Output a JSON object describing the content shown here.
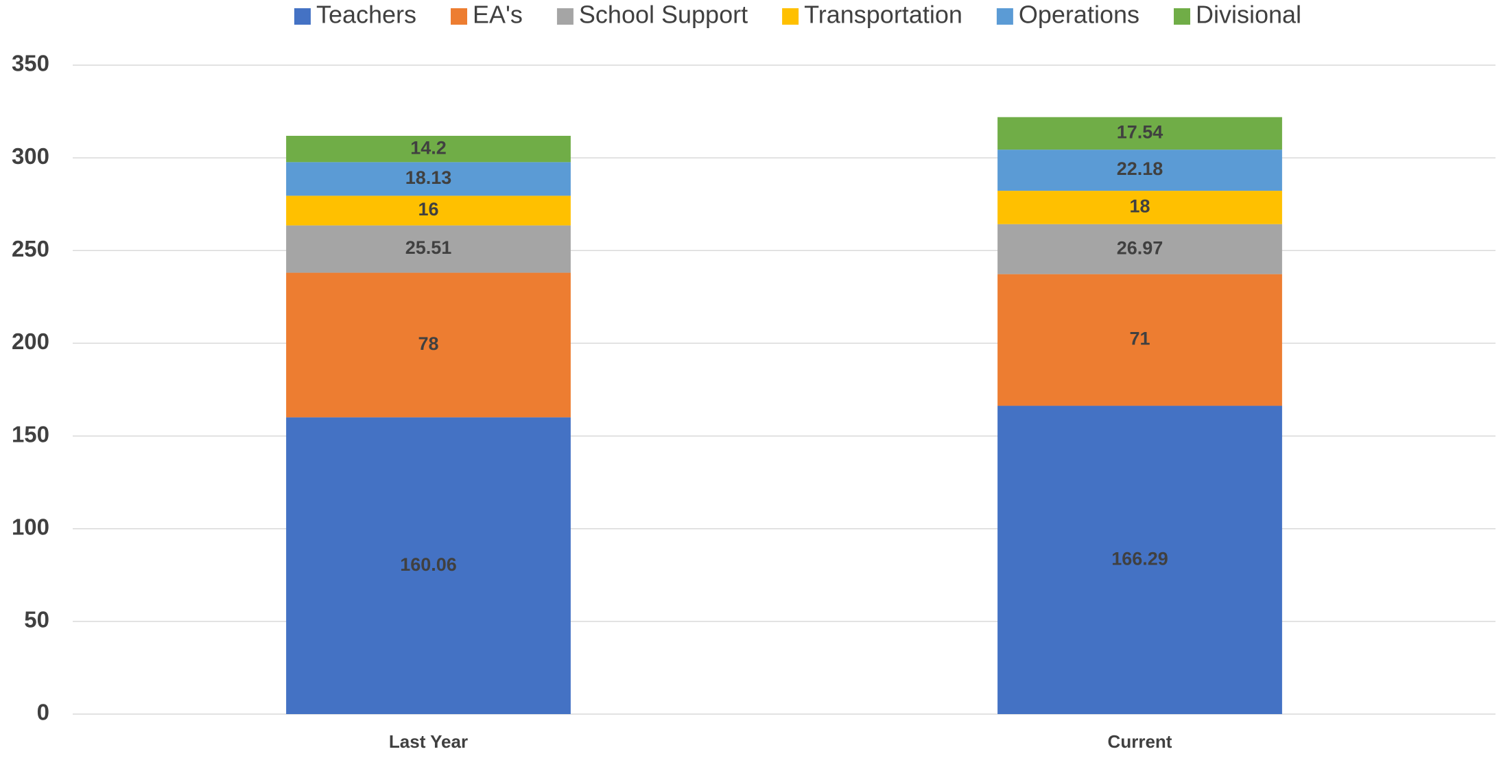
{
  "chart_data": {
    "type": "stacked_bar",
    "categories": [
      "Last Year",
      "Current"
    ],
    "series": [
      {
        "name": "Teachers",
        "color": "#4472c4",
        "values": [
          160.06,
          166.29
        ]
      },
      {
        "name": "EA's",
        "color": "#ed7d31",
        "values": [
          78,
          71
        ]
      },
      {
        "name": "School Support",
        "color": "#a5a5a5",
        "values": [
          25.51,
          26.97
        ]
      },
      {
        "name": "Transportation",
        "color": "#ffc000",
        "values": [
          16,
          18
        ]
      },
      {
        "name": "Operations",
        "color": "#5b9bd5",
        "values": [
          18.13,
          22.18
        ]
      },
      {
        "name": "Divisional",
        "color": "#70ad47",
        "values": [
          14.2,
          17.54
        ]
      }
    ],
    "ylim": [
      0,
      350
    ],
    "yticks": [
      0,
      50,
      100,
      150,
      200,
      250,
      300,
      350
    ],
    "grid": true,
    "legend": "top"
  }
}
